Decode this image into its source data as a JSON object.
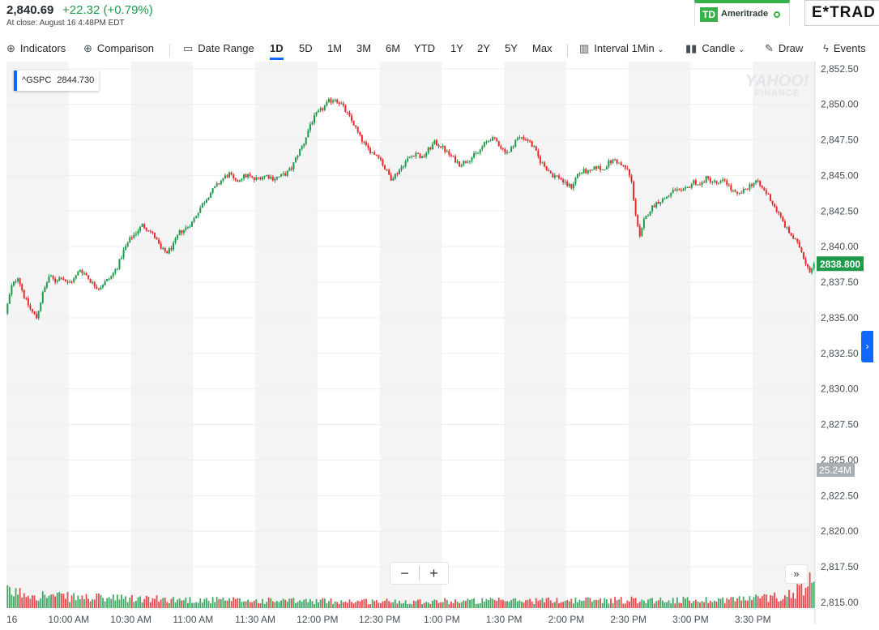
{
  "quote": {
    "price": "2,840.69",
    "change": "+22.32 (+0.79%)",
    "time": "At close: August 16 4:48PM EDT"
  },
  "ads": {
    "td_badge": "TD",
    "td_name": "Ameritrade",
    "etrade_name": "E*TRAD"
  },
  "toolbar": {
    "indicators": "Indicators",
    "comparison": "Comparison",
    "date_range": "Date Range",
    "ranges": [
      "1D",
      "5D",
      "1M",
      "3M",
      "6M",
      "YTD",
      "1Y",
      "2Y",
      "5Y",
      "Max"
    ],
    "active_range": "1D",
    "interval_label": "Interval",
    "interval_value": "1Min",
    "chart_type": "Candle",
    "draw": "Draw",
    "events": "Events"
  },
  "symbol_label": {
    "symbol": "^GSPC",
    "value": "2844.730"
  },
  "watermark": {
    "line1": "YAHOO!",
    "line2": "FINANCE"
  },
  "zoom": {
    "minus": "−",
    "plus": "+"
  },
  "chart_data": {
    "type": "candlestick",
    "title": "",
    "xlabel": "",
    "ylabel": "",
    "ylim": [
      2814.6,
      2853.0
    ],
    "y_ticks": [
      2852.5,
      2850.0,
      2847.5,
      2845.0,
      2842.5,
      2840.0,
      2837.5,
      2835.0,
      2832.5,
      2830.0,
      2827.5,
      2825.0,
      2822.5,
      2820.0,
      2817.5,
      2815.0
    ],
    "y_tick_labels": [
      "2,852.50",
      "2,850.00",
      "2,847.50",
      "2,845.00",
      "2,842.50",
      "2,840.00",
      "2,837.50",
      "2,835.00",
      "2,832.50",
      "2,830.00",
      "2,827.50",
      "2,825.00",
      "2,822.50",
      "2,820.00",
      "2,817.50",
      "2,815.00"
    ],
    "x_tick_labels": [
      "16",
      "10:00 AM",
      "10:30 AM",
      "11:00 AM",
      "11:30 AM",
      "12:00 PM",
      "12:30 PM",
      "1:00 PM",
      "1:30 PM",
      "2:00 PM",
      "2:30 PM",
      "3:00 PM",
      "3:30 PM"
    ],
    "x_tick_minutes": [
      0,
      30,
      60,
      90,
      120,
      150,
      180,
      210,
      240,
      270,
      300,
      330,
      360
    ],
    "session_minutes": [
      0,
      390
    ],
    "last_price": "2838.800",
    "volume_label": "25.24M",
    "up_color": "#1e9a4a",
    "down_color": "#e8292c",
    "price_path": [
      [
        0,
        2835.3
      ],
      [
        3,
        2837.2
      ],
      [
        6,
        2837.9
      ],
      [
        9,
        2836.5
      ],
      [
        12,
        2835.6
      ],
      [
        15,
        2835.0
      ],
      [
        18,
        2836.7
      ],
      [
        21,
        2837.9
      ],
      [
        24,
        2837.6
      ],
      [
        27,
        2837.9
      ],
      [
        30,
        2837.4
      ],
      [
        33,
        2837.7
      ],
      [
        36,
        2838.4
      ],
      [
        39,
        2838.0
      ],
      [
        42,
        2837.4
      ],
      [
        45,
        2837.1
      ],
      [
        48,
        2837.5
      ],
      [
        51,
        2837.9
      ],
      [
        54,
        2838.6
      ],
      [
        57,
        2839.7
      ],
      [
        60,
        2840.5
      ],
      [
        63,
        2841.0
      ],
      [
        66,
        2841.5
      ],
      [
        69,
        2841.2
      ],
      [
        72,
        2840.7
      ],
      [
        75,
        2839.8
      ],
      [
        78,
        2839.6
      ],
      [
        81,
        2840.1
      ],
      [
        84,
        2841.0
      ],
      [
        87,
        2841.3
      ],
      [
        90,
        2841.7
      ],
      [
        93,
        2842.5
      ],
      [
        96,
        2843.2
      ],
      [
        99,
        2843.8
      ],
      [
        102,
        2844.3
      ],
      [
        105,
        2844.8
      ],
      [
        108,
        2845.1
      ],
      [
        111,
        2844.5
      ],
      [
        114,
        2844.9
      ],
      [
        117,
        2845.0
      ],
      [
        120,
        2844.7
      ],
      [
        123,
        2844.9
      ],
      [
        126,
        2845.0
      ],
      [
        129,
        2844.8
      ],
      [
        132,
        2844.9
      ],
      [
        135,
        2845.1
      ],
      [
        138,
        2845.5
      ],
      [
        141,
        2846.5
      ],
      [
        144,
        2847.3
      ],
      [
        147,
        2848.6
      ],
      [
        150,
        2849.3
      ],
      [
        153,
        2849.7
      ],
      [
        156,
        2850.2
      ],
      [
        159,
        2850.4
      ],
      [
        162,
        2850.0
      ],
      [
        165,
        2849.3
      ],
      [
        168,
        2848.6
      ],
      [
        171,
        2847.7
      ],
      [
        174,
        2847.0
      ],
      [
        177,
        2846.6
      ],
      [
        180,
        2846.4
      ],
      [
        183,
        2845.5
      ],
      [
        186,
        2844.8
      ],
      [
        189,
        2845.2
      ],
      [
        192,
        2845.8
      ],
      [
        195,
        2846.3
      ],
      [
        198,
        2846.6
      ],
      [
        201,
        2846.2
      ],
      [
        204,
        2846.8
      ],
      [
        207,
        2847.3
      ],
      [
        210,
        2847.1
      ],
      [
        213,
        2846.6
      ],
      [
        216,
        2846.2
      ],
      [
        219,
        2845.8
      ],
      [
        222,
        2846.0
      ],
      [
        225,
        2846.3
      ],
      [
        228,
        2846.6
      ],
      [
        231,
        2847.2
      ],
      [
        234,
        2847.6
      ],
      [
        237,
        2847.4
      ],
      [
        240,
        2846.8
      ],
      [
        243,
        2846.6
      ],
      [
        246,
        2847.5
      ],
      [
        249,
        2847.7
      ],
      [
        252,
        2847.5
      ],
      [
        255,
        2846.9
      ],
      [
        258,
        2846.0
      ],
      [
        261,
        2845.5
      ],
      [
        264,
        2845.0
      ],
      [
        267,
        2844.9
      ],
      [
        270,
        2844.4
      ],
      [
        273,
        2844.2
      ],
      [
        276,
        2845.1
      ],
      [
        279,
        2845.3
      ],
      [
        282,
        2845.2
      ],
      [
        285,
        2845.6
      ],
      [
        288,
        2845.4
      ],
      [
        291,
        2845.9
      ],
      [
        294,
        2846.1
      ],
      [
        297,
        2845.7
      ],
      [
        300,
        2845.4
      ],
      [
        302,
        2844.5
      ],
      [
        304,
        2842.3
      ],
      [
        306,
        2840.6
      ],
      [
        308,
        2841.8
      ],
      [
        311,
        2842.6
      ],
      [
        314,
        2843.1
      ],
      [
        317,
        2843.3
      ],
      [
        320,
        2843.6
      ],
      [
        323,
        2844.0
      ],
      [
        326,
        2843.8
      ],
      [
        329,
        2844.1
      ],
      [
        332,
        2844.6
      ],
      [
        335,
        2844.3
      ],
      [
        338,
        2844.8
      ],
      [
        341,
        2844.6
      ],
      [
        344,
        2844.4
      ],
      [
        347,
        2844.7
      ],
      [
        350,
        2844.0
      ],
      [
        353,
        2843.6
      ],
      [
        356,
        2843.9
      ],
      [
        359,
        2844.3
      ],
      [
        362,
        2844.6
      ],
      [
        365,
        2844.1
      ],
      [
        368,
        2843.6
      ],
      [
        371,
        2842.8
      ],
      [
        374,
        2842.0
      ],
      [
        377,
        2841.2
      ],
      [
        380,
        2840.6
      ],
      [
        383,
        2840.0
      ],
      [
        386,
        2838.9
      ],
      [
        388,
        2838.3
      ],
      [
        390,
        2838.8
      ]
    ],
    "volume_profile": [
      [
        0,
        0.65
      ],
      [
        10,
        0.6
      ],
      [
        20,
        0.5
      ],
      [
        30,
        0.45
      ],
      [
        60,
        0.38
      ],
      [
        120,
        0.3
      ],
      [
        180,
        0.28
      ],
      [
        240,
        0.3
      ],
      [
        300,
        0.34
      ],
      [
        330,
        0.32
      ],
      [
        360,
        0.4
      ],
      [
        375,
        0.5
      ],
      [
        385,
        0.9
      ],
      [
        388,
        1.2
      ],
      [
        390,
        2.5
      ]
    ]
  }
}
